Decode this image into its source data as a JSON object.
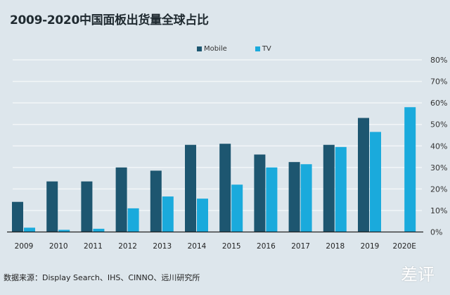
{
  "chart_data": {
    "type": "bar",
    "title": "2009-2020中国面板出货量全球占比",
    "categories": [
      "2009",
      "2010",
      "2011",
      "2012",
      "2013",
      "2014",
      "2015",
      "2016",
      "2017",
      "2018",
      "2019",
      "2020E"
    ],
    "series": [
      {
        "name": "Mobile",
        "color": "#1d5670",
        "values": [
          14,
          23.5,
          23.5,
          30,
          28.5,
          40.5,
          41,
          36,
          32.5,
          40.5,
          53,
          null
        ]
      },
      {
        "name": "TV",
        "color": "#1aaadc",
        "values": [
          2,
          1,
          1.5,
          11,
          16.5,
          15.5,
          22,
          30,
          31.5,
          39.5,
          46.5,
          58
        ]
      }
    ],
    "yticks": [
      "0%",
      "10%",
      "20%",
      "30%",
      "40%",
      "50%",
      "60%",
      "70%",
      "80%"
    ],
    "ylim": [
      0,
      80
    ],
    "y_axis_position": "right",
    "grid": true,
    "legend_position": "top"
  },
  "source": "数据来源：Display Search、IHS、CINNO、远川研究所",
  "watermark": "差评"
}
